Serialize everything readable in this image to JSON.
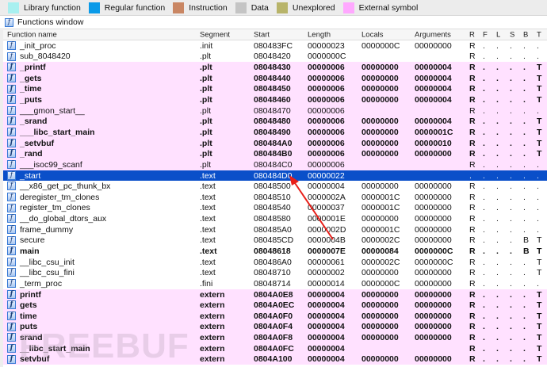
{
  "legend": [
    {
      "label": "Library function",
      "color": "#a8f0f0"
    },
    {
      "label": "Regular function",
      "color": "#0a9ae8"
    },
    {
      "label": "Instruction",
      "color": "#c98663"
    },
    {
      "label": "Data",
      "color": "#c4c4c4"
    },
    {
      "label": "Unexplored",
      "color": "#b8b46a"
    },
    {
      "label": "External symbol",
      "color": "#ffa8ff"
    }
  ],
  "window_title": "Functions window",
  "columns": [
    "Function name",
    "Segment",
    "Start",
    "Length",
    "Locals",
    "Arguments",
    "R",
    "F",
    "L",
    "S",
    "B",
    "T"
  ],
  "rows": [
    {
      "name": "_init_proc",
      "seg": ".init",
      "start": "080483FC",
      "len": "00000023",
      "loc": "0000000C",
      "args": "00000000",
      "f": [
        "R",
        ".",
        ".",
        ".",
        ".",
        "."
      ],
      "ext": false,
      "bold": false
    },
    {
      "name": "sub_8048420",
      "seg": ".plt",
      "start": "08048420",
      "len": "0000000C",
      "loc": "",
      "args": "",
      "f": [
        "R",
        ".",
        ".",
        ".",
        ".",
        "."
      ],
      "ext": false,
      "bold": false
    },
    {
      "name": "_printf",
      "seg": ".plt",
      "start": "08048430",
      "len": "00000006",
      "loc": "00000000",
      "args": "00000004",
      "f": [
        "R",
        ".",
        ".",
        ".",
        ".",
        "T"
      ],
      "ext": true,
      "bold": true
    },
    {
      "name": "_gets",
      "seg": ".plt",
      "start": "08048440",
      "len": "00000006",
      "loc": "00000000",
      "args": "00000004",
      "f": [
        "R",
        ".",
        ".",
        ".",
        ".",
        "T"
      ],
      "ext": true,
      "bold": true
    },
    {
      "name": "_time",
      "seg": ".plt",
      "start": "08048450",
      "len": "00000006",
      "loc": "00000000",
      "args": "00000004",
      "f": [
        "R",
        ".",
        ".",
        ".",
        ".",
        "T"
      ],
      "ext": true,
      "bold": true
    },
    {
      "name": "_puts",
      "seg": ".plt",
      "start": "08048460",
      "len": "00000006",
      "loc": "00000000",
      "args": "00000004",
      "f": [
        "R",
        ".",
        ".",
        ".",
        ".",
        "T"
      ],
      "ext": true,
      "bold": true
    },
    {
      "name": "___gmon_start__",
      "seg": ".plt",
      "start": "08048470",
      "len": "00000006",
      "loc": "",
      "args": "",
      "f": [
        "R",
        ".",
        ".",
        ".",
        ".",
        "."
      ],
      "ext": true,
      "bold": false
    },
    {
      "name": "_srand",
      "seg": ".plt",
      "start": "08048480",
      "len": "00000006",
      "loc": "00000000",
      "args": "00000004",
      "f": [
        "R",
        ".",
        ".",
        ".",
        ".",
        "T"
      ],
      "ext": true,
      "bold": true
    },
    {
      "name": "___libc_start_main",
      "seg": ".plt",
      "start": "08048490",
      "len": "00000006",
      "loc": "00000000",
      "args": "0000001C",
      "f": [
        "R",
        ".",
        ".",
        ".",
        ".",
        "T"
      ],
      "ext": true,
      "bold": true
    },
    {
      "name": "_setvbuf",
      "seg": ".plt",
      "start": "080484A0",
      "len": "00000006",
      "loc": "00000000",
      "args": "00000010",
      "f": [
        "R",
        ".",
        ".",
        ".",
        ".",
        "T"
      ],
      "ext": true,
      "bold": true
    },
    {
      "name": "_rand",
      "seg": ".plt",
      "start": "080484B0",
      "len": "00000006",
      "loc": "00000000",
      "args": "00000000",
      "f": [
        "R",
        ".",
        ".",
        ".",
        ".",
        "T"
      ],
      "ext": true,
      "bold": true
    },
    {
      "name": "___isoc99_scanf",
      "seg": ".plt",
      "start": "080484C0",
      "len": "00000006",
      "loc": "",
      "args": "",
      "f": [
        "R",
        ".",
        ".",
        ".",
        ".",
        "."
      ],
      "ext": true,
      "bold": false
    },
    {
      "name": "_start",
      "seg": ".text",
      "start": "080484D0",
      "len": "00000022",
      "loc": "",
      "args": "",
      "f": [
        ".",
        ".",
        ".",
        ".",
        ".",
        "."
      ],
      "ext": false,
      "bold": false,
      "selected": true
    },
    {
      "name": "__x86_get_pc_thunk_bx",
      "seg": ".text",
      "start": "08048500",
      "len": "00000004",
      "loc": "00000000",
      "args": "00000000",
      "f": [
        "R",
        ".",
        ".",
        ".",
        ".",
        "."
      ],
      "ext": false,
      "bold": false
    },
    {
      "name": "deregister_tm_clones",
      "seg": ".text",
      "start": "08048510",
      "len": "0000002A",
      "loc": "0000001C",
      "args": "00000000",
      "f": [
        "R",
        ".",
        ".",
        ".",
        ".",
        "."
      ],
      "ext": false,
      "bold": false
    },
    {
      "name": "register_tm_clones",
      "seg": ".text",
      "start": "08048540",
      "len": "00000037",
      "loc": "0000001C",
      "args": "00000000",
      "f": [
        "R",
        ".",
        ".",
        ".",
        ".",
        "."
      ],
      "ext": false,
      "bold": false
    },
    {
      "name": "__do_global_dtors_aux",
      "seg": ".text",
      "start": "08048580",
      "len": "0000001E",
      "loc": "00000000",
      "args": "00000000",
      "f": [
        "R",
        ".",
        ".",
        ".",
        ".",
        "."
      ],
      "ext": false,
      "bold": false
    },
    {
      "name": "frame_dummy",
      "seg": ".text",
      "start": "080485A0",
      "len": "0000002D",
      "loc": "0000001C",
      "args": "00000000",
      "f": [
        "R",
        ".",
        ".",
        ".",
        ".",
        "."
      ],
      "ext": false,
      "bold": false
    },
    {
      "name": "secure",
      "seg": ".text",
      "start": "080485CD",
      "len": "0000004B",
      "loc": "0000002C",
      "args": "00000000",
      "f": [
        "R",
        ".",
        ".",
        ".",
        "B",
        "T"
      ],
      "ext": false,
      "bold": false
    },
    {
      "name": "main",
      "seg": ".text",
      "start": "08048618",
      "len": "0000007E",
      "loc": "00000084",
      "args": "0000000C",
      "f": [
        "R",
        ".",
        ".",
        ".",
        "B",
        "T"
      ],
      "ext": false,
      "bold": true
    },
    {
      "name": "__libc_csu_init",
      "seg": ".text",
      "start": "080486A0",
      "len": "00000061",
      "loc": "0000002C",
      "args": "0000000C",
      "f": [
        "R",
        ".",
        ".",
        ".",
        ".",
        "T"
      ],
      "ext": false,
      "bold": false
    },
    {
      "name": "__libc_csu_fini",
      "seg": ".text",
      "start": "08048710",
      "len": "00000002",
      "loc": "00000000",
      "args": "00000000",
      "f": [
        "R",
        ".",
        ".",
        ".",
        ".",
        "T"
      ],
      "ext": false,
      "bold": false
    },
    {
      "name": "_term_proc",
      "seg": ".fini",
      "start": "08048714",
      "len": "00000014",
      "loc": "0000000C",
      "args": "00000000",
      "f": [
        "R",
        ".",
        ".",
        ".",
        ".",
        "."
      ],
      "ext": false,
      "bold": false
    },
    {
      "name": "printf",
      "seg": "extern",
      "start": "0804A0E8",
      "len": "00000004",
      "loc": "00000000",
      "args": "00000000",
      "f": [
        "R",
        ".",
        ".",
        ".",
        ".",
        "T"
      ],
      "ext": true,
      "bold": true
    },
    {
      "name": "gets",
      "seg": "extern",
      "start": "0804A0EC",
      "len": "00000004",
      "loc": "00000000",
      "args": "00000000",
      "f": [
        "R",
        ".",
        ".",
        ".",
        ".",
        "T"
      ],
      "ext": true,
      "bold": true
    },
    {
      "name": "time",
      "seg": "extern",
      "start": "0804A0F0",
      "len": "00000004",
      "loc": "00000000",
      "args": "00000000",
      "f": [
        "R",
        ".",
        ".",
        ".",
        ".",
        "T"
      ],
      "ext": true,
      "bold": true
    },
    {
      "name": "puts",
      "seg": "extern",
      "start": "0804A0F4",
      "len": "00000004",
      "loc": "00000000",
      "args": "00000000",
      "f": [
        "R",
        ".",
        ".",
        ".",
        ".",
        "T"
      ],
      "ext": true,
      "bold": true
    },
    {
      "name": "srand",
      "seg": "extern",
      "start": "0804A0F8",
      "len": "00000004",
      "loc": "00000000",
      "args": "00000000",
      "f": [
        "R",
        ".",
        ".",
        ".",
        ".",
        "T"
      ],
      "ext": true,
      "bold": true
    },
    {
      "name": "__libc_start_main",
      "seg": "extern",
      "start": "0804A0FC",
      "len": "00000004",
      "loc": "",
      "args": "",
      "f": [
        "R",
        ".",
        ".",
        ".",
        ".",
        "T"
      ],
      "ext": true,
      "bold": true
    },
    {
      "name": "setvbuf",
      "seg": "extern",
      "start": "0804A100",
      "len": "00000004",
      "loc": "00000000",
      "args": "00000000",
      "f": [
        "R",
        ".",
        ".",
        ".",
        ".",
        "T"
      ],
      "ext": true,
      "bold": true
    }
  ],
  "watermark": "FREEBUF",
  "colors": {
    "selection": "#0a4fc9",
    "external_row": "#ffe1ff",
    "annotation_arrow": "#e8201a"
  }
}
